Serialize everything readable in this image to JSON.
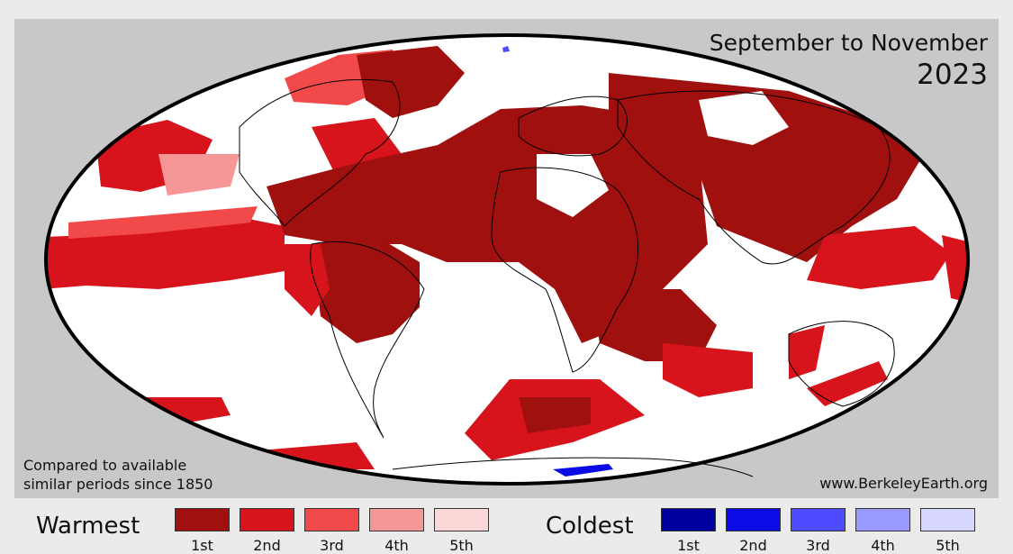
{
  "title": {
    "period": "September to November",
    "year": "2023"
  },
  "note": {
    "line1": "Compared to available",
    "line2": "similar periods since 1850"
  },
  "source": "www.BerkeleyEarth.org",
  "legend": {
    "warm_heading": "Warmest",
    "cold_heading": "Coldest",
    "warm": [
      {
        "rank": "1st",
        "color": "#a0100e"
      },
      {
        "rank": "2nd",
        "color": "#d7141c"
      },
      {
        "rank": "3rd",
        "color": "#f24a4a"
      },
      {
        "rank": "4th",
        "color": "#f79696"
      },
      {
        "rank": "5th",
        "color": "#fcd7d7"
      }
    ],
    "cold": [
      {
        "rank": "1st",
        "color": "#00009e"
      },
      {
        "rank": "2nd",
        "color": "#0b0be6"
      },
      {
        "rank": "3rd",
        "color": "#4d4dff"
      },
      {
        "rank": "4th",
        "color": "#9a9aff"
      },
      {
        "rank": "5th",
        "color": "#d6d6ff"
      }
    ]
  },
  "colors": {
    "panel_background": "#c8c8c8",
    "ocean_land_default": "#ffffff",
    "outline": "#000000"
  }
}
